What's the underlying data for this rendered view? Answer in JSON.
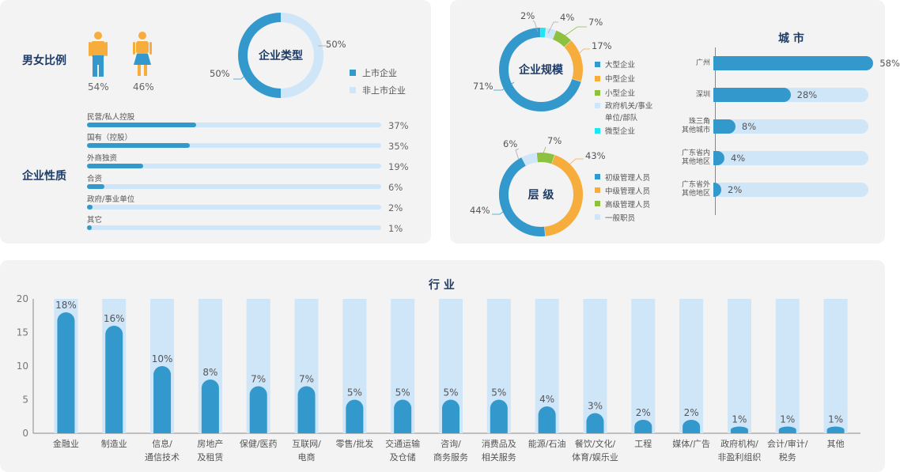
{
  "colors": {
    "dark": "#3399cc",
    "light": "#cfe5f8",
    "orange": "#f6ad3b",
    "green": "#8dc13f",
    "cyan": "#1ee5ee",
    "navy": "#1d3b66"
  },
  "gender": {
    "title": "男女比例",
    "male_pct": "54%",
    "female_pct": "46%",
    "male_icon": "male-person-icon",
    "female_icon": "female-person-icon"
  },
  "company_type": {
    "center": "企业类型",
    "legend": [
      "上市企业",
      "非上市企业"
    ],
    "chart_data": {
      "type": "pie",
      "labels": [
        "上市企业",
        "非上市企业"
      ],
      "values": [
        50,
        50
      ],
      "value_labels": [
        "50%",
        "50%"
      ]
    }
  },
  "nature": {
    "title": "企业性质",
    "chart_data": {
      "type": "bar",
      "categories": [
        "民营/私人控股",
        "国有（控股）",
        "外商独资",
        "合资",
        "政府/事业单位",
        "其它"
      ],
      "values": [
        37,
        35,
        19,
        6,
        2,
        1
      ],
      "value_labels": [
        "37%",
        "35%",
        "19%",
        "6%",
        "2%",
        "1%"
      ]
    }
  },
  "scale": {
    "center": "企业规模",
    "legend": [
      "大型企业",
      "中型企业",
      "小型企业",
      "政府机关/事业",
      "单位/部队",
      "微型企业"
    ],
    "chart_data": {
      "type": "pie",
      "labels": [
        "大型企业",
        "中型企业",
        "小型企业",
        "政府机关/事业单位/部队",
        "微型企业"
      ],
      "values": [
        71,
        17,
        7,
        4,
        2
      ],
      "value_labels": [
        "71%",
        "17%",
        "7%",
        "4%",
        "2%"
      ]
    }
  },
  "level": {
    "center": "层 级",
    "legend": [
      "初级管理人员",
      "中级管理人员",
      "高级管理人员",
      "一般职员"
    ],
    "chart_data": {
      "type": "pie",
      "labels": [
        "初级管理人员",
        "中级管理人员",
        "高级管理人员",
        "一般职员"
      ],
      "values": [
        44,
        43,
        7,
        6
      ],
      "value_labels": [
        "44%",
        "43%",
        "7%",
        "6%"
      ]
    }
  },
  "city": {
    "title": "城 市",
    "label_lines": [
      [
        "广州"
      ],
      [
        "深圳"
      ],
      [
        "珠三角",
        "其他城市"
      ],
      [
        "广东省内",
        "其他地区"
      ],
      [
        "广东省外",
        "其他地区"
      ]
    ],
    "chart_data": {
      "type": "bar",
      "categories": [
        "广州",
        "深圳",
        "珠三角其他城市",
        "广东省内其他地区",
        "广东省外其他地区"
      ],
      "values": [
        58,
        28,
        8,
        4,
        2
      ],
      "value_labels": [
        "58%",
        "28%",
        "8%",
        "4%",
        "2%"
      ]
    }
  },
  "industry": {
    "title": "行 业",
    "label_lines": [
      [
        "金融业"
      ],
      [
        "制造业"
      ],
      [
        "信息/",
        "通信技术"
      ],
      [
        "房地产",
        "及租赁"
      ],
      [
        "保健/医药"
      ],
      [
        "互联网/",
        "电商"
      ],
      [
        "零售/批发"
      ],
      [
        "交通运输",
        "及仓储"
      ],
      [
        "咨询/",
        "商务服务"
      ],
      [
        "消费品及",
        "相关服务"
      ],
      [
        "能源/石油"
      ],
      [
        "餐饮/文化/",
        "体育/娱乐业"
      ],
      [
        "工程"
      ],
      [
        "媒体/广告"
      ],
      [
        "政府机构/",
        "非盈利组织"
      ],
      [
        "会计/审计/",
        "税务"
      ],
      [
        "其他"
      ]
    ],
    "chart_data": {
      "type": "bar",
      "categories": [
        "金融业",
        "制造业",
        "信息/通信技术",
        "房地产及租赁",
        "保健/医药",
        "互联网/电商",
        "零售/批发",
        "交通运输及仓储",
        "咨询/商务服务",
        "消费品及相关服务",
        "能源/石油",
        "餐饮/文化/体育/娱乐业",
        "工程",
        "媒体/广告",
        "政府机构/非盈利组织",
        "会计/审计/税务",
        "其他"
      ],
      "values": [
        18,
        16,
        10,
        8,
        7,
        7,
        5,
        5,
        5,
        5,
        4,
        3,
        2,
        2,
        1,
        1,
        1
      ],
      "value_labels": [
        "18%",
        "16%",
        "10%",
        "8%",
        "7%",
        "7%",
        "5%",
        "5%",
        "5%",
        "5%",
        "4%",
        "3%",
        "2%",
        "2%",
        "1%",
        "1%",
        "1%"
      ],
      "ylim": [
        0,
        20
      ],
      "yticks": [
        "0",
        "5",
        "10",
        "15",
        "20"
      ]
    }
  }
}
